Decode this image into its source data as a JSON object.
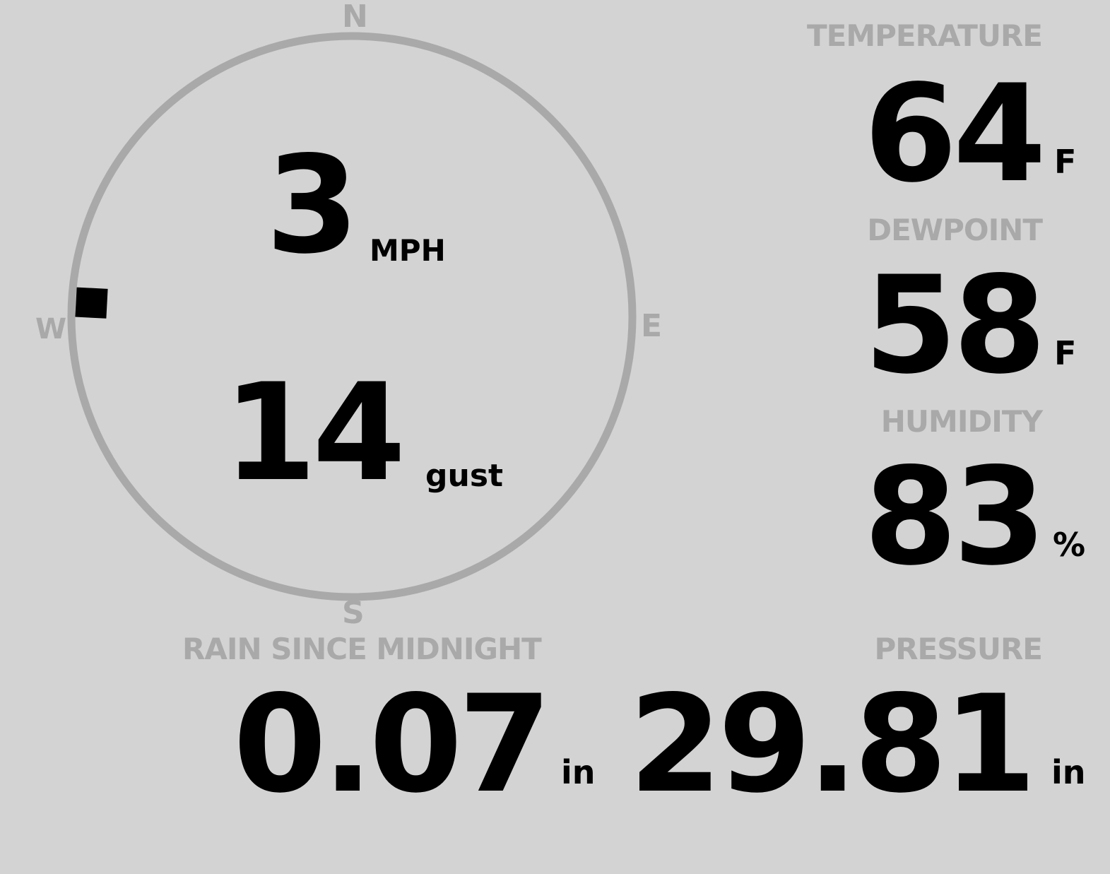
{
  "wind": {
    "compass": {
      "n": "N",
      "e": "E",
      "s": "S",
      "w": "W"
    },
    "direction_degrees": 273,
    "speed": "3",
    "speed_unit": "MPH",
    "gust": "14",
    "gust_unit": "gust"
  },
  "temperature": {
    "label": "TEMPERATURE",
    "value": "64",
    "unit": "F"
  },
  "dewpoint": {
    "label": "DEWPOINT",
    "value": "58",
    "unit": "F"
  },
  "humidity": {
    "label": "HUMIDITY",
    "value": "83",
    "unit": "%"
  },
  "rain": {
    "label": "RAIN SINCE MIDNIGHT",
    "value": "0.07",
    "unit": "in"
  },
  "pressure": {
    "label": "PRESSURE",
    "value": "29.81",
    "unit": "in"
  },
  "colors": {
    "background": "#d3d3d3",
    "muted": "#a9a9a9",
    "value": "#000000"
  }
}
